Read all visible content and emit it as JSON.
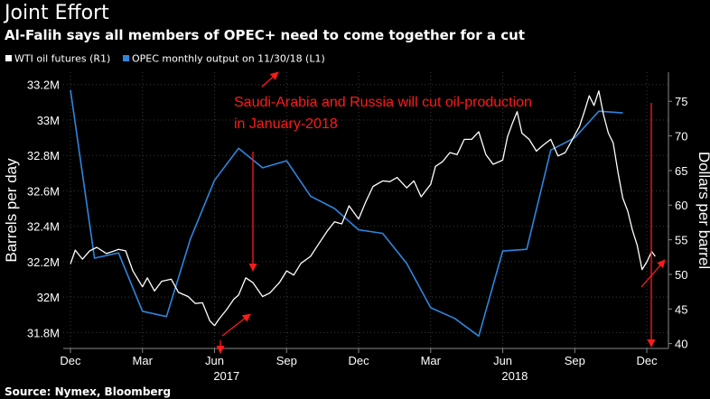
{
  "header": {
    "title": "Joint Effort",
    "subtitle": "Al-Falih says all members of OPEC+ need to come together for a cut"
  },
  "footer": {
    "source": "Source: Nymex, Bloomberg"
  },
  "chart_data": {
    "type": "line",
    "legend": {
      "placement": "top-left",
      "entries": [
        "WTI oil futures  (R1)",
        "OPEC monthly output  on 11/30/18  (L1)"
      ]
    },
    "annotation": {
      "lines": [
        "Saudi-Arabia and Russia will cut oil-production",
        "in January-2018"
      ],
      "color": "#ff1a1a"
    },
    "x_axis": {
      "month_ticks": [
        {
          "label": "Dec",
          "x": 0
        },
        {
          "label": "Mar",
          "x": 3
        },
        {
          "label": "Jun",
          "x": 6
        },
        {
          "label": "Sep",
          "x": 9
        },
        {
          "label": "Dec",
          "x": 12
        },
        {
          "label": "Mar",
          "x": 15
        },
        {
          "label": "Jun",
          "x": 18
        },
        {
          "label": "Sep",
          "x": 21
        },
        {
          "label": "Dec",
          "x": 24
        }
      ],
      "year_labels": [
        {
          "label": "2017",
          "x": 6.5
        },
        {
          "label": "2018",
          "x": 18.5
        }
      ],
      "range": [
        -0.3,
        24.9
      ]
    },
    "left_axis": {
      "label": "Barrels per day",
      "unit": "M",
      "range": [
        31.71,
        33.27
      ],
      "ticks": [
        {
          "v": 31.8,
          "label": "31.8M"
        },
        {
          "v": 32.0,
          "label": "32M"
        },
        {
          "v": 32.2,
          "label": "32.2M"
        },
        {
          "v": 32.4,
          "label": "32.4M"
        },
        {
          "v": 32.6,
          "label": "32.6M"
        },
        {
          "v": 32.8,
          "label": "32.8M"
        },
        {
          "v": 33.0,
          "label": "33M"
        },
        {
          "v": 33.2,
          "label": "33.2M"
        }
      ]
    },
    "right_axis": {
      "label": "Dollars per barrel",
      "range": [
        39.3,
        79.2
      ],
      "ticks": [
        40,
        45,
        50,
        55,
        60,
        65,
        70,
        75
      ]
    },
    "series": [
      {
        "name": "OPEC monthly output  on 11/30/18  (L1)",
        "axis": "left",
        "color": "#2e86de",
        "points": [
          [
            0,
            33.17
          ],
          [
            1,
            32.22
          ],
          [
            2,
            32.25
          ],
          [
            3,
            31.92
          ],
          [
            4,
            31.89
          ],
          [
            5,
            32.33
          ],
          [
            6,
            32.66
          ],
          [
            7,
            32.84
          ],
          [
            8,
            32.73
          ],
          [
            9,
            32.77
          ],
          [
            10,
            32.57
          ],
          [
            11,
            32.5
          ],
          [
            12,
            32.38
          ],
          [
            13,
            32.36
          ],
          [
            14,
            32.19
          ],
          [
            15,
            31.94
          ],
          [
            16,
            31.88
          ],
          [
            17,
            31.78
          ],
          [
            18,
            32.26
          ],
          [
            19,
            32.27
          ],
          [
            20,
            32.83
          ],
          [
            21,
            32.9
          ],
          [
            22,
            33.05
          ],
          [
            23,
            33.04
          ]
        ]
      },
      {
        "name": "WTI oil futures  (R1)",
        "axis": "right",
        "color": "#ffffff",
        "points": [
          [
            0,
            51.5
          ],
          [
            0.2,
            53.5
          ],
          [
            0.5,
            52.2
          ],
          [
            0.8,
            53.4
          ],
          [
            1.1,
            53.9
          ],
          [
            1.5,
            53
          ],
          [
            2,
            53.6
          ],
          [
            2.3,
            53.4
          ],
          [
            2.6,
            50.5
          ],
          [
            3,
            48.2
          ],
          [
            3.2,
            49.5
          ],
          [
            3.5,
            47.6
          ],
          [
            3.8,
            49
          ],
          [
            4.2,
            49.3
          ],
          [
            4.5,
            47.4
          ],
          [
            4.9,
            46.8
          ],
          [
            5.2,
            45.8
          ],
          [
            5.5,
            45.9
          ],
          [
            5.8,
            43.3
          ],
          [
            6,
            42.6
          ],
          [
            6.2,
            43.6
          ],
          [
            6.5,
            44.9
          ],
          [
            6.8,
            46.4
          ],
          [
            7,
            47
          ],
          [
            7.3,
            49.5
          ],
          [
            7.6,
            48.8
          ],
          [
            8,
            46.8
          ],
          [
            8.3,
            47.3
          ],
          [
            8.7,
            48.8
          ],
          [
            9,
            50.5
          ],
          [
            9.3,
            49.9
          ],
          [
            9.6,
            51.6
          ],
          [
            10,
            52.6
          ],
          [
            10.3,
            54.2
          ],
          [
            10.7,
            56.3
          ],
          [
            11,
            57.6
          ],
          [
            11.3,
            57.3
          ],
          [
            11.6,
            59.9
          ],
          [
            12,
            58
          ],
          [
            12.3,
            60.5
          ],
          [
            12.6,
            62.7
          ],
          [
            13,
            63.5
          ],
          [
            13.3,
            63.4
          ],
          [
            13.6,
            64
          ],
          [
            14,
            62.5
          ],
          [
            14.3,
            63.5
          ],
          [
            14.6,
            61.2
          ],
          [
            15,
            63
          ],
          [
            15.2,
            65.6
          ],
          [
            15.5,
            66.3
          ],
          [
            15.8,
            67.6
          ],
          [
            16.1,
            67.3
          ],
          [
            16.4,
            69.5
          ],
          [
            16.7,
            69.5
          ],
          [
            17,
            70.6
          ],
          [
            17.3,
            67.3
          ],
          [
            17.6,
            65.9
          ],
          [
            18,
            66.5
          ],
          [
            18.2,
            69.9
          ],
          [
            18.4,
            71.8
          ],
          [
            18.6,
            73.5
          ],
          [
            18.8,
            70.4
          ],
          [
            19.1,
            69.5
          ],
          [
            19.4,
            67.8
          ],
          [
            19.7,
            68.7
          ],
          [
            20,
            69.5
          ],
          [
            20.3,
            67.1
          ],
          [
            20.6,
            67.6
          ],
          [
            20.9,
            69.5
          ],
          [
            21.2,
            71.4
          ],
          [
            21.4,
            73.5
          ],
          [
            21.6,
            75.8
          ],
          [
            21.8,
            74.4
          ],
          [
            22,
            76.5
          ],
          [
            22.2,
            73
          ],
          [
            22.4,
            70.4
          ],
          [
            22.6,
            69
          ],
          [
            22.8,
            64.7
          ],
          [
            23,
            61
          ],
          [
            23.2,
            59.2
          ],
          [
            23.4,
            56.4
          ],
          [
            23.6,
            54.2
          ],
          [
            23.8,
            50.7
          ],
          [
            24,
            51.8
          ],
          [
            24.2,
            53.3
          ],
          [
            24.35,
            52.6
          ]
        ]
      }
    ]
  }
}
